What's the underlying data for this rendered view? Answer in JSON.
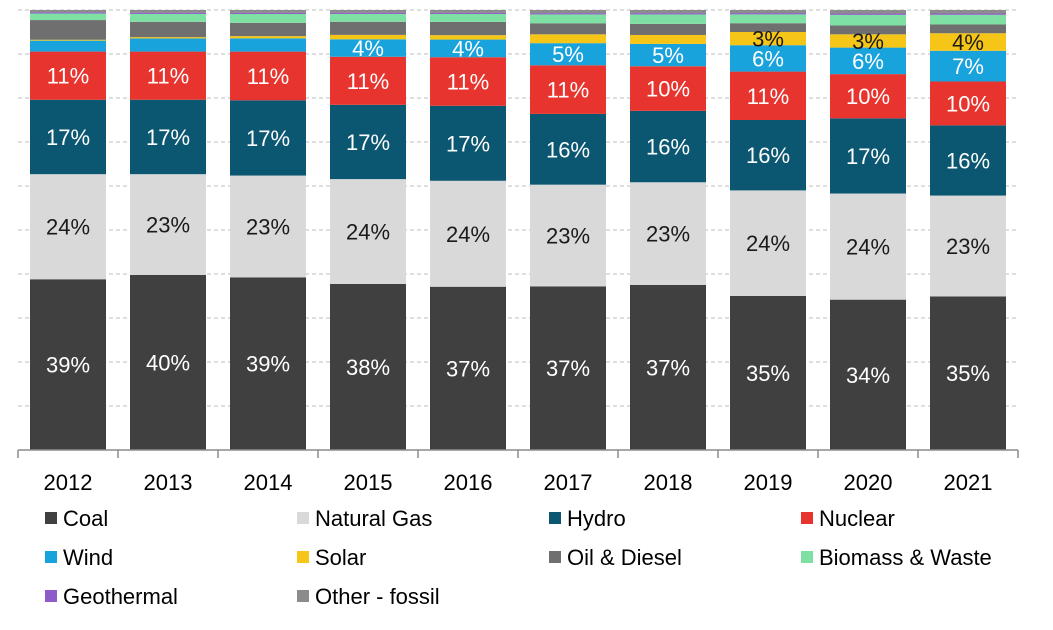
{
  "chart_data": {
    "type": "bar",
    "stacked": true,
    "normalized": true,
    "categories": [
      "2012",
      "2013",
      "2014",
      "2015",
      "2016",
      "2017",
      "2018",
      "2019",
      "2020",
      "2021"
    ],
    "ylim": [
      0,
      100
    ],
    "grid": true,
    "legend_position": "bottom",
    "series": [
      {
        "name": "Coal",
        "color": "#404040",
        "label_color": "#ffffff",
        "values": [
          39,
          40,
          39,
          38,
          37,
          37,
          37,
          35,
          34,
          35
        ],
        "labels": [
          "39%",
          "40%",
          "39%",
          "38%",
          "37%",
          "37%",
          "37%",
          "35%",
          "34%",
          "35%"
        ]
      },
      {
        "name": "Natural Gas",
        "color": "#d9d9d9",
        "label_color": "#1a1a1a",
        "values": [
          24,
          23,
          23,
          24,
          24,
          23,
          23,
          24,
          24,
          23
        ],
        "labels": [
          "24%",
          "23%",
          "23%",
          "24%",
          "24%",
          "23%",
          "23%",
          "24%",
          "24%",
          "23%"
        ]
      },
      {
        "name": "Hydro",
        "color": "#0b5670",
        "label_color": "#ffffff",
        "values": [
          17,
          17,
          17,
          17,
          17,
          16,
          16,
          16,
          17,
          16
        ],
        "labels": [
          "17%",
          "17%",
          "17%",
          "17%",
          "17%",
          "16%",
          "16%",
          "16%",
          "17%",
          "16%"
        ]
      },
      {
        "name": "Nuclear",
        "color": "#e8342e",
        "label_color": "#ffffff",
        "values": [
          11,
          11,
          11,
          11,
          11,
          11,
          10,
          11,
          10,
          10
        ],
        "labels": [
          "11%",
          "11%",
          "11%",
          "11%",
          "11%",
          "11%",
          "10%",
          "11%",
          "10%",
          "10%"
        ]
      },
      {
        "name": "Wind",
        "color": "#19a3dc",
        "label_color": "#ffffff",
        "values": [
          2.5,
          3,
          3,
          4,
          4,
          5,
          5,
          6,
          6,
          7
        ],
        "labels": [
          "",
          "",
          "",
          "4%",
          "4%",
          "5%",
          "5%",
          "6%",
          "6%",
          "7%"
        ]
      },
      {
        "name": "Solar",
        "color": "#f5c518",
        "label_color": "#1a1a1a",
        "values": [
          0.2,
          0.3,
          0.5,
          1,
          1,
          2,
          2,
          3,
          3,
          4
        ],
        "labels": [
          "",
          "",
          "",
          "",
          "",
          "",
          "",
          "3%",
          "3%",
          "4%"
        ]
      },
      {
        "name": "Oil & Diesel",
        "color": "#6f6f6f",
        "label_color": "#ffffff",
        "values": [
          4.5,
          3.5,
          3,
          3,
          3,
          2.5,
          2.5,
          2,
          2,
          2
        ],
        "labels": [
          "",
          "",
          "",
          "",
          "",
          "",
          "",
          "",
          "",
          ""
        ]
      },
      {
        "name": "Biomass & Waste",
        "color": "#7ee0a3",
        "label_color": "#1a1a1a",
        "values": [
          1.5,
          1.8,
          2,
          1.8,
          1.8,
          2,
          2.1,
          2,
          2.4,
          2.2
        ],
        "labels": [
          "",
          "",
          "",
          "",
          "",
          "",
          "",
          "",
          "",
          ""
        ]
      },
      {
        "name": "Geothermal",
        "color": "#8e5cc8",
        "label_color": "#ffffff",
        "values": [
          0.3,
          0.3,
          0.3,
          0.3,
          0.3,
          0.3,
          0.3,
          0.3,
          0.3,
          0.3
        ],
        "labels": [
          "",
          "",
          "",
          "",
          "",
          "",
          "",
          "",
          "",
          ""
        ]
      },
      {
        "name": "Other - fossil",
        "color": "#8c8c8c",
        "label_color": "#ffffff",
        "values": [
          0.5,
          0.6,
          0.6,
          0.6,
          0.6,
          0.7,
          0.7,
          0.7,
          0.8,
          0.8
        ],
        "labels": [
          "",
          "",
          "",
          "",
          "",
          "",
          "",
          "",
          "",
          ""
        ]
      }
    ]
  }
}
